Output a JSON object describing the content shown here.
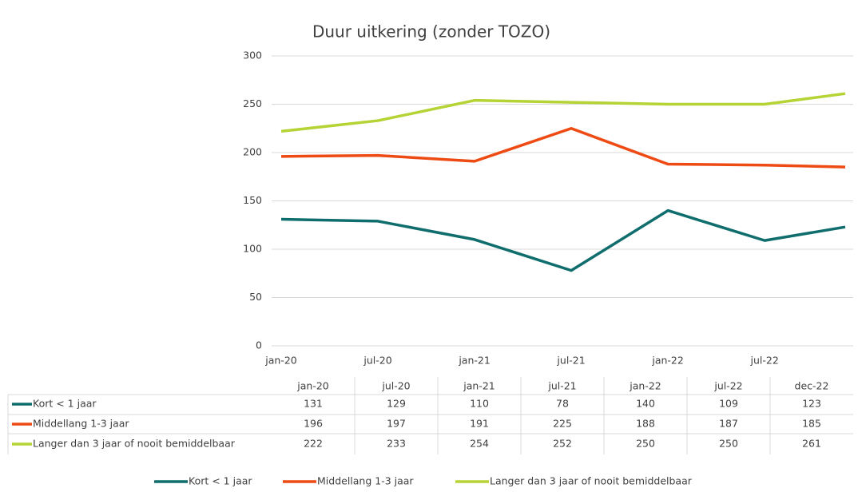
{
  "chart_data": {
    "type": "line",
    "title": "Duur uitkering (zonder TOZO)",
    "x": [
      "2020-01",
      "2020-07",
      "2021-01",
      "2021-07",
      "2022-01",
      "2022-07",
      "2022-12"
    ],
    "xticks": [
      {
        "value": "2020-01",
        "label": "jan-20"
      },
      {
        "value": "2020-07",
        "label": "jul-20"
      },
      {
        "value": "2021-01",
        "label": "jan-21"
      },
      {
        "value": "2021-07",
        "label": "jul-21"
      },
      {
        "value": "2022-01",
        "label": "jan-22"
      },
      {
        "value": "2022-07",
        "label": "jul-22"
      }
    ],
    "xlim": [
      "2020-01",
      "2022-12"
    ],
    "table_header": [
      "jan-20",
      "jul-20",
      "jan-21",
      "jul-21",
      "jan-22",
      "jul-22",
      "dec-22"
    ],
    "series": [
      {
        "name": "Kort < 1 jaar",
        "color": "#0f6e6d",
        "values": [
          131,
          129,
          110,
          78,
          140,
          109,
          123
        ]
      },
      {
        "name": "Middellang 1-3 jaar",
        "color": "#ee4a14",
        "values": [
          196,
          197,
          191,
          225,
          188,
          187,
          185
        ]
      },
      {
        "name": "Langer dan 3 jaar of nooit bemiddelbaar",
        "color": "#b5d334",
        "values": [
          222,
          233,
          254,
          252,
          250,
          250,
          261
        ]
      }
    ],
    "ylim": [
      0,
      300
    ],
    "yticks": [
      0,
      50,
      100,
      150,
      200,
      250,
      300
    ],
    "grid": true,
    "legend": "bottom"
  }
}
